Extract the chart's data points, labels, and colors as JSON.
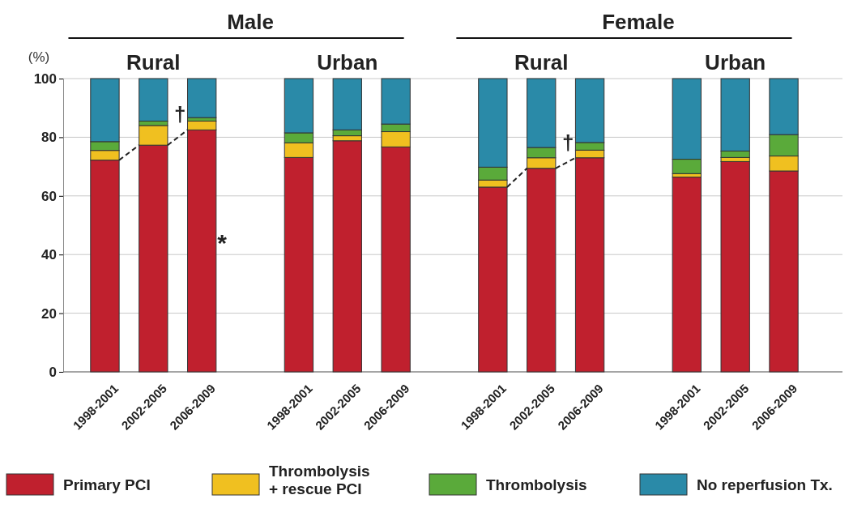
{
  "chart_data": {
    "type": "bar",
    "stacked": true,
    "ylabel": "(%)",
    "categories": [
      "1998-2001",
      "2002-2005",
      "2006-2009",
      null,
      "1998-2001",
      "2002-2005",
      "2006-2009",
      null,
      "1998-2001",
      "2002-2005",
      "2006-2009",
      null,
      "1998-2001",
      "2002-2005",
      "2006-2009"
    ],
    "series": [
      {
        "name": "Primary PCI",
        "color": "#c0202e",
        "values": [
          72.2,
          77.3,
          82.5,
          null,
          73.1,
          78.8,
          76.7,
          null,
          63.0,
          69.4,
          73.0,
          null,
          66.4,
          71.7,
          68.5
        ]
      },
      {
        "name": "Thrombolysis + rescue PCI",
        "color": "#f0c020",
        "values": [
          3.3,
          6.7,
          3.0,
          null,
          5.0,
          1.7,
          5.2,
          null,
          2.4,
          3.6,
          2.6,
          null,
          1.2,
          1.4,
          5.1
        ]
      },
      {
        "name": "Thrombolysis",
        "color": "#5aaa3a",
        "values": [
          3.0,
          1.5,
          1.2,
          null,
          3.4,
          2.0,
          2.6,
          null,
          4.4,
          3.5,
          2.6,
          null,
          4.9,
          2.2,
          7.3
        ]
      },
      {
        "name": "No reperfusion Tx.",
        "color": "#2a8aa8",
        "values": [
          21.5,
          14.5,
          13.3,
          null,
          18.5,
          17.5,
          15.5,
          null,
          30.2,
          23.5,
          21.8,
          null,
          27.5,
          24.7,
          19.1
        ]
      }
    ],
    "ylim": [
      0,
      100
    ],
    "yticks": [
      0,
      20,
      40,
      60,
      80,
      100
    ],
    "grid": "y",
    "legend": "bottom",
    "annotations": [
      "Male",
      "Female",
      "Rural",
      "Urban",
      "Rural",
      "Urban",
      "†",
      "*",
      "†"
    ]
  }
}
